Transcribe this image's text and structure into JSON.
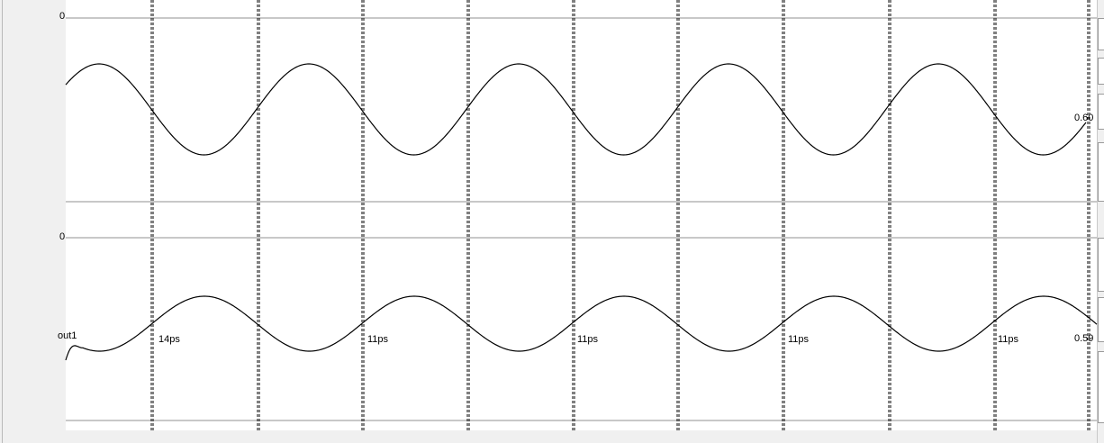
{
  "upper_panel": {
    "axis_top_label": "0",
    "end_value": "0.60"
  },
  "lower_panel": {
    "axis_top_label": "0",
    "signal_name": "out1",
    "end_value": "0.59",
    "delay_labels": [
      "14ps",
      "11ps",
      "11ps",
      "11ps",
      "11ps"
    ]
  }
}
